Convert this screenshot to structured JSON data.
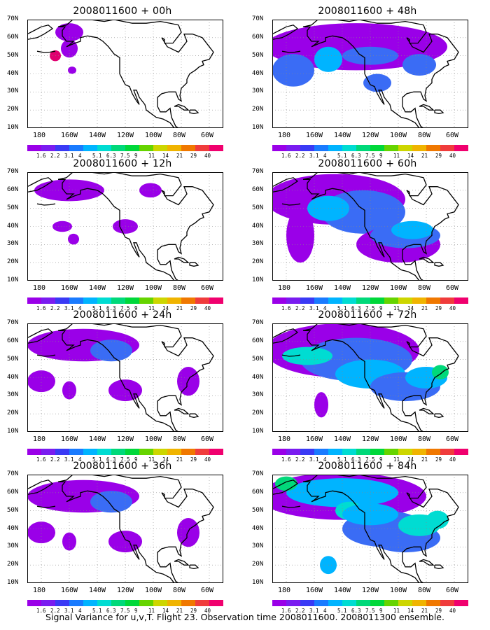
{
  "panels": [
    {
      "title": "2008011600 + 00h",
      "intensity": 0
    },
    {
      "title": "2008011600 + 48h",
      "intensity": 3
    },
    {
      "title": "2008011600 + 12h",
      "intensity": 1
    },
    {
      "title": "2008011600 + 60h",
      "intensity": 4
    },
    {
      "title": "2008011600 + 24h",
      "intensity": 2
    },
    {
      "title": "2008011600 + 72h",
      "intensity": 5
    },
    {
      "title": "2008011600 + 36h",
      "intensity": 2
    },
    {
      "title": "2008011600 + 84h",
      "intensity": 6
    }
  ],
  "lat_labels": [
    "70N",
    "60N",
    "50N",
    "40N",
    "30N",
    "20N",
    "10N"
  ],
  "lon_labels": [
    "180",
    "160W",
    "140W",
    "120W",
    "100W",
    "80W",
    "60W"
  ],
  "colorbar": {
    "labels": [
      "1.6",
      "2.2",
      "3.1",
      "4",
      "5.1",
      "6.3",
      "7.5",
      "9",
      "11",
      "14",
      "21",
      "29",
      "40"
    ],
    "colors": [
      "#9a00e8",
      "#7a1cf0",
      "#3a3af5",
      "#1a7bff",
      "#00b4ff",
      "#00dcd2",
      "#00d97a",
      "#00d83a",
      "#66d400",
      "#cdd600",
      "#f0b400",
      "#f07800",
      "#f03c3c",
      "#f0006e"
    ]
  },
  "footer": "Signal Variance for u,v,T. Flight 23. Observation time 2008011600. 2008011300 ensemble."
}
